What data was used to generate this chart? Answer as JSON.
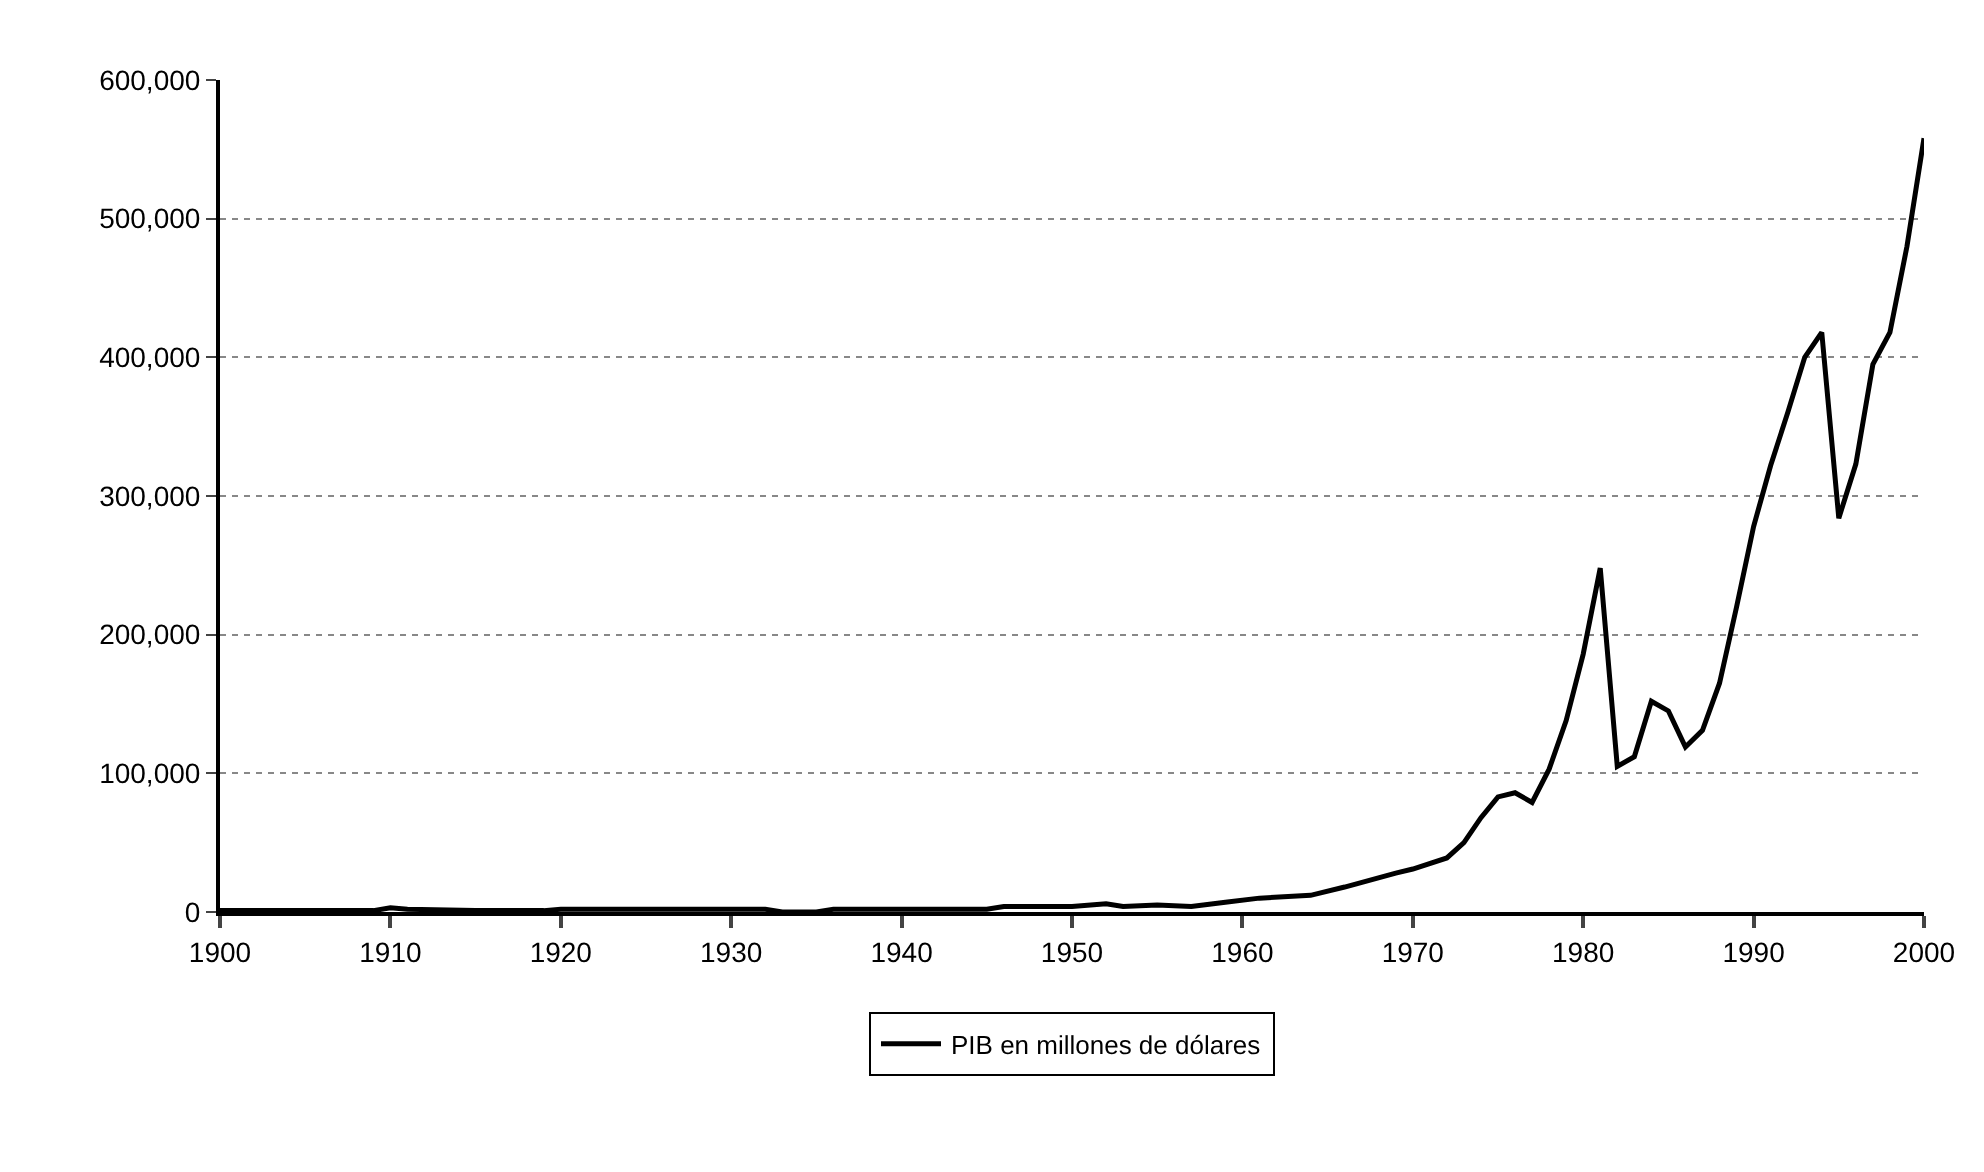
{
  "chart_data": {
    "type": "line",
    "x": [
      1900,
      1905,
      1909,
      1910,
      1911,
      1915,
      1919,
      1920,
      1925,
      1930,
      1932,
      1933,
      1935,
      1936,
      1940,
      1945,
      1946,
      1950,
      1952,
      1953,
      1955,
      1957,
      1959,
      1961,
      1964,
      1966,
      1969,
      1970,
      1972,
      1973,
      1974,
      1975,
      1976,
      1977,
      1978,
      1979,
      1980,
      1981,
      1982,
      1983,
      1984,
      1985,
      1986,
      1987,
      1988,
      1989,
      1990,
      1991,
      1992,
      1993,
      1994,
      1995,
      1996,
      1997,
      1998,
      1999,
      2000
    ],
    "series": [
      {
        "name": "PIB en millones de dólares",
        "color": "#000000",
        "values": [
          1000,
          1000,
          1000,
          3000,
          2000,
          1000,
          1000,
          2000,
          2000,
          2000,
          2000,
          0,
          0,
          2000,
          2000,
          2000,
          4000,
          4000,
          6000,
          4000,
          5000,
          4000,
          7000,
          10000,
          12000,
          18000,
          28000,
          31000,
          39000,
          50000,
          68000,
          83000,
          86000,
          79000,
          103000,
          138000,
          186000,
          248000,
          105000,
          112000,
          152000,
          145000,
          119000,
          131000,
          165000,
          220000,
          278000,
          322000,
          360000,
          400000,
          418000,
          284000,
          323000,
          395000,
          418000,
          480000,
          558000
        ]
      }
    ],
    "xlim": [
      1900,
      2000
    ],
    "xticks": [
      1900,
      1910,
      1920,
      1930,
      1940,
      1950,
      1960,
      1970,
      1980,
      1990,
      2000
    ],
    "ylim": [
      0,
      600000
    ],
    "yticks": [
      0,
      {
        "value": 100000,
        "label": "100,000"
      },
      {
        "value": 200000,
        "label": "200,000"
      },
      {
        "value": 300000,
        "label": "300,000"
      },
      {
        "value": 400000,
        "label": "400,000"
      },
      {
        "value": 500000,
        "label": "500,000"
      },
      {
        "value": 600000,
        "label": "600,000"
      }
    ],
    "grid": "y",
    "legend": "bottom",
    "marker": "none",
    "line_style": "solid"
  }
}
